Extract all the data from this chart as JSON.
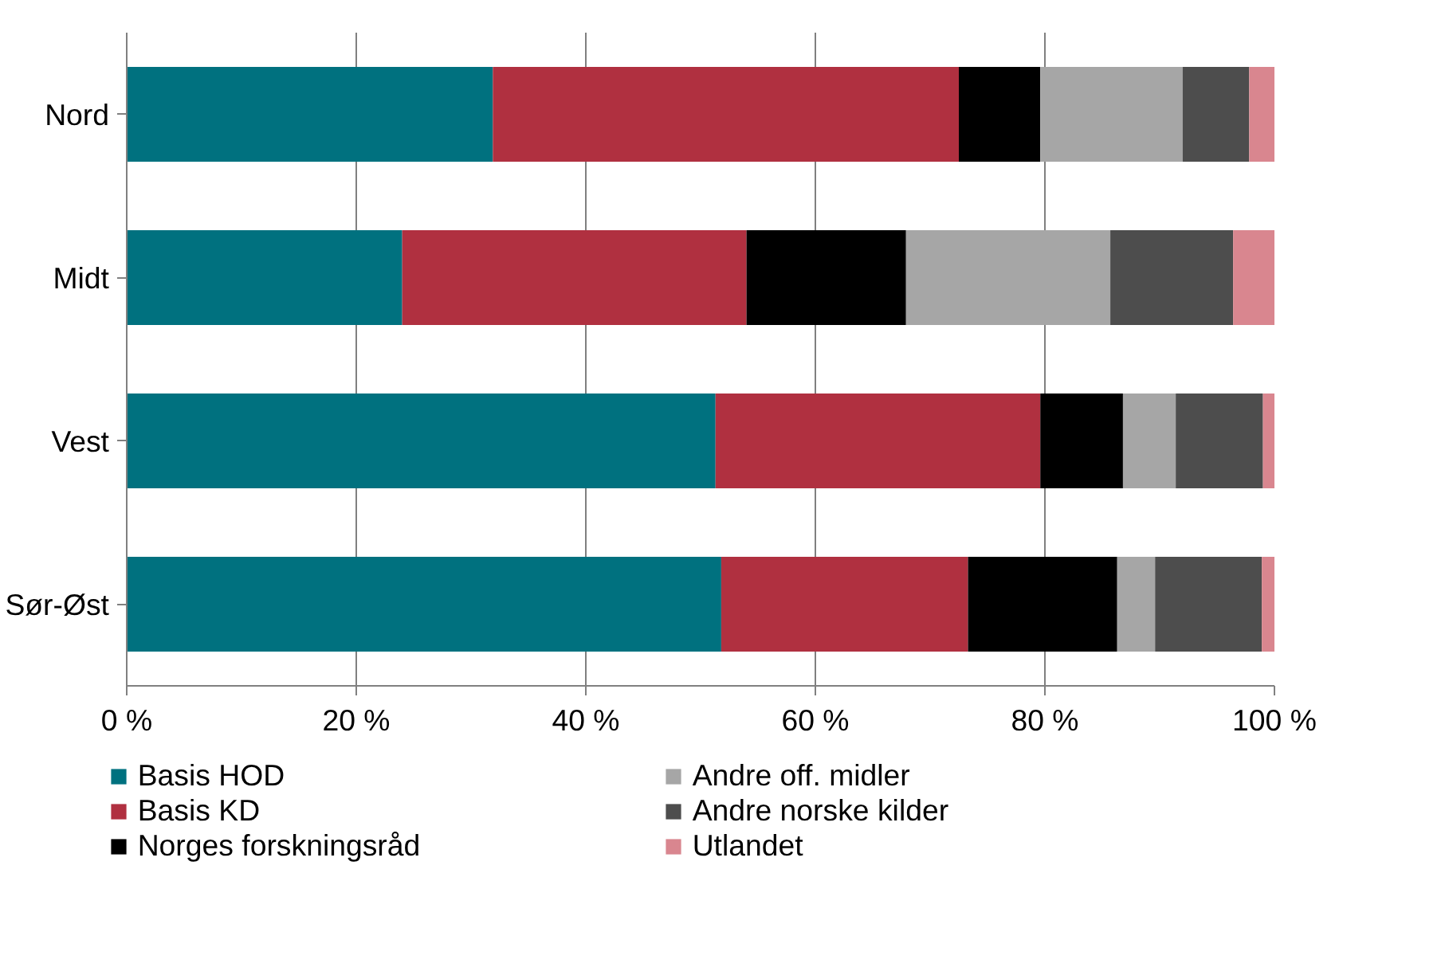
{
  "chart_data": {
    "type": "bar",
    "orientation": "horizontal",
    "stacked": true,
    "categories": [
      "Nord",
      "Midt",
      "Vest",
      "Sør-Øst"
    ],
    "series": [
      {
        "name": "Basis HOD",
        "color": "#00717f",
        "values": [
          31.9,
          24.0,
          51.3,
          51.8
        ]
      },
      {
        "name": "Basis KD",
        "color": "#b03040",
        "values": [
          40.6,
          30.0,
          28.3,
          21.5
        ]
      },
      {
        "name": "Norges forskningsråd",
        "color": "#000000",
        "values": [
          7.1,
          13.9,
          7.2,
          13.0
        ]
      },
      {
        "name": "Andre off. midler",
        "color": "#a6a6a6",
        "values": [
          12.4,
          17.8,
          4.6,
          3.3
        ]
      },
      {
        "name": "Andre norske kilder",
        "color": "#4d4d4d",
        "values": [
          5.8,
          10.7,
          7.6,
          9.3
        ]
      },
      {
        "name": "Utlandet",
        "color": "#d9868f",
        "values": [
          2.2,
          3.6,
          1.0,
          1.1
        ]
      }
    ],
    "xlim": [
      0,
      100
    ],
    "xticks": [
      {
        "value": 0,
        "label": "0 %"
      },
      {
        "value": 20,
        "label": "20 %"
      },
      {
        "value": 40,
        "label": "40 %"
      },
      {
        "value": 60,
        "label": "60 %"
      },
      {
        "value": 80,
        "label": "80 %"
      },
      {
        "value": 100,
        "label": "100 %"
      }
    ],
    "grid": "x",
    "legend": "bottom"
  }
}
